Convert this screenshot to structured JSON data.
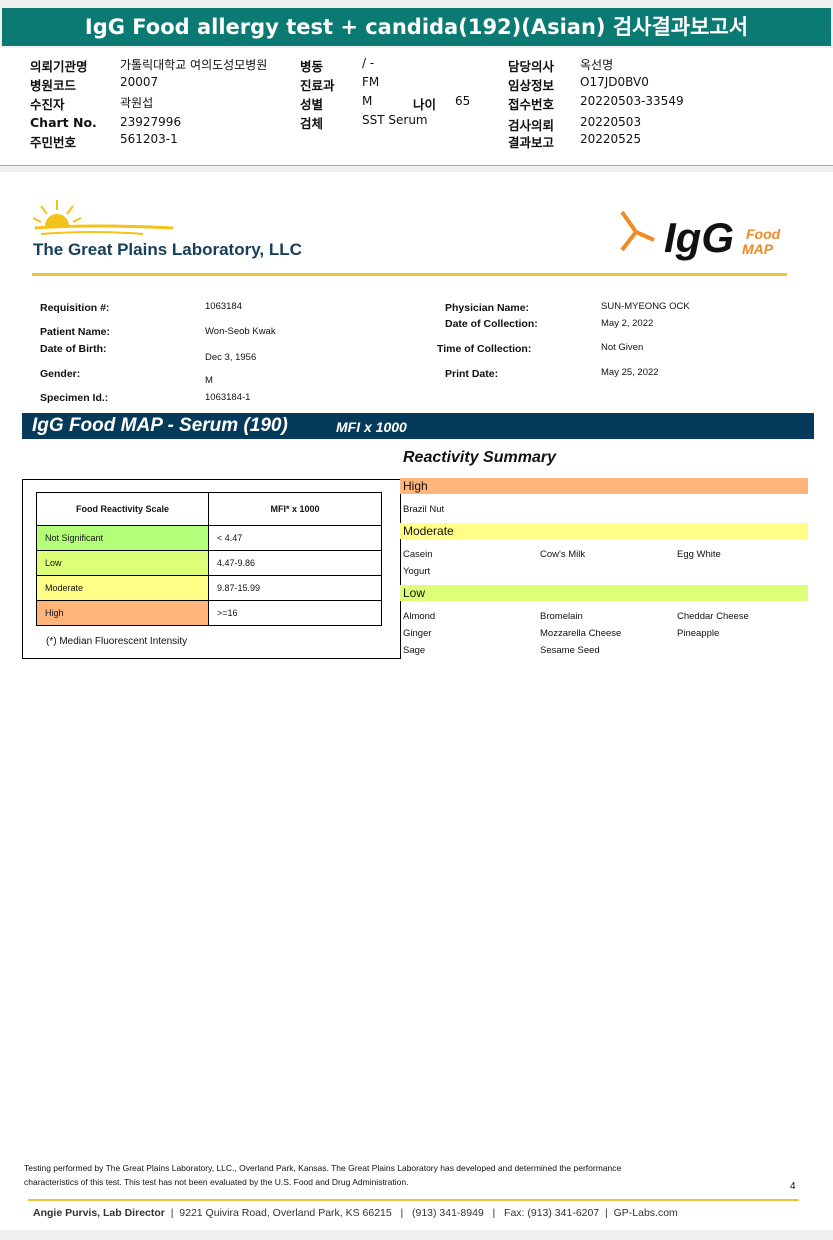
{
  "title": "IgG Food allergy test + candida(192)(Asian) 검사결과보고서",
  "kheader": [
    {
      "l": "의뢰기관명",
      "v": "가톨릭대학교 여의도성모병원"
    },
    {
      "l": "병원코드",
      "v": "20007"
    },
    {
      "l": "수진자",
      "v": "곽원섭"
    },
    {
      "l": "Chart No.",
      "v": "23927996"
    },
    {
      "l": "주민번호",
      "v": "561203-1"
    },
    {
      "l": "병동",
      "v": "/ -"
    },
    {
      "l": "진료과",
      "v": "FM"
    },
    {
      "l": "성별",
      "v": "M"
    },
    {
      "l": "나이",
      "v": "65"
    },
    {
      "l": "검체",
      "v": "SST Serum"
    },
    {
      "l": "담당의사",
      "v": "옥선명"
    },
    {
      "l": "임상정보",
      "v": "O17JD0BV0"
    },
    {
      "l": "접수번호",
      "v": "20220503-33549"
    },
    {
      "l": "검사의뢰",
      "v": "20220503"
    },
    {
      "l": "결과보고",
      "v": "20220525"
    }
  ],
  "lab_name": "The Great Plains Laboratory, LLC",
  "logo": {
    "big": "IgG",
    "food": "Food",
    "map": "MAP"
  },
  "patient": {
    "requisition": {
      "l": "Requisition #:",
      "v": "1063184"
    },
    "name": {
      "l": "Patient Name:",
      "v": "Won-Seob Kwak"
    },
    "dob": {
      "l": "Date of Birth:",
      "v": "Dec 3, 1956"
    },
    "gender": {
      "l": "Gender:",
      "v": "M"
    },
    "specimen": {
      "l": "Specimen Id.:",
      "v": "1063184-1"
    },
    "physician": {
      "l": "Physician Name:",
      "v": "SUN-MYEONG OCK"
    },
    "collection_date": {
      "l": "Date of Collection:",
      "v": "May 2, 2022"
    },
    "collection_time": {
      "l": "Time of Collection:",
      "v": "Not Given"
    },
    "print_date": {
      "l": "Print Date:",
      "v": "May 25, 2022"
    }
  },
  "banner": {
    "title": "IgG Food MAP - Serum (190)",
    "unit": "MFI x 1000"
  },
  "scale": {
    "h1": "Food Reactivity Scale",
    "h2": "MFI* x 1000",
    "rows": [
      {
        "l": "Not Significant",
        "v": "< 4.47",
        "c": "#b3ff7a"
      },
      {
        "l": "Low",
        "v": "4.47-9.86",
        "c": "#ddff77"
      },
      {
        "l": "Moderate",
        "v": "9.87-15.99",
        "c": "#ffff88"
      },
      {
        "l": "High",
        "v": ">=16",
        "c": "#ffb47a"
      }
    ],
    "note": "(*) Median Fluorescent Intensity"
  },
  "summary": {
    "title": "Reactivity Summary",
    "high": {
      "label": "High",
      "color": "#ffb47a",
      "foods": [
        "Brazil Nut"
      ]
    },
    "moderate": {
      "label": "Moderate",
      "color": "#ffff88",
      "foods": [
        "Casein",
        "Cow's Milk",
        "Egg White",
        "Yogurt"
      ]
    },
    "low": {
      "label": "Low",
      "color": "#ddff77",
      "foods": [
        "Almond",
        "Bromelain",
        "Cheddar Cheese",
        "Ginger",
        "Mozzarella Cheese",
        "Pineapple",
        "Sage",
        "Sesame Seed"
      ]
    }
  },
  "disclaimer": [
    "Testing performed by The Great Plains Laboratory, LLC., Overland Park, Kansas.  The Great Plains Laboratory has developed and determined the performance",
    "characteristics of this test.  This test has not been evaluated by the U.S.  Food and Drug Administration."
  ],
  "page_number": "4",
  "footer": {
    "director": "Angie Purvis, Lab Director",
    "address": "9221 Quivira Road, Overland Park, KS 66215",
    "phone": "(913) 341-8949",
    "fax": "Fax: (913) 341-6207",
    "web": "GP-Labs.com"
  }
}
